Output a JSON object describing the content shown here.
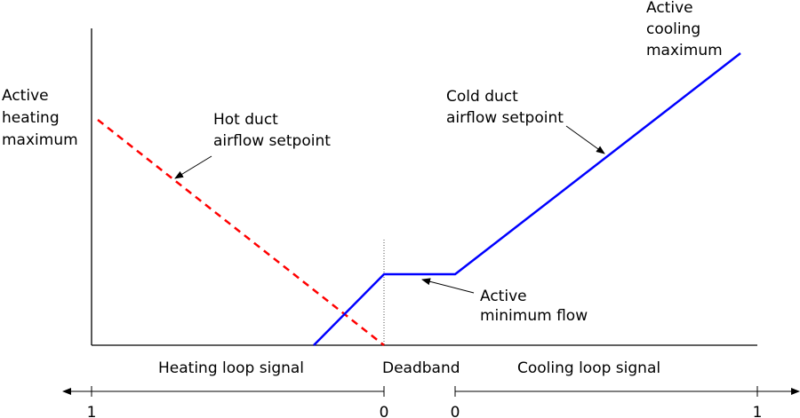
{
  "labels": {
    "heating_max": [
      "Active",
      "heating",
      "maximum"
    ],
    "hot_duct": [
      "Hot duct",
      "airflow setpoint"
    ],
    "cold_duct": [
      "Cold duct",
      "airflow setpoint"
    ],
    "cooling_max": [
      "Active",
      "cooling",
      "maximum"
    ],
    "min_flow": [
      "Active",
      "minimum flow"
    ],
    "heating_signal": "Heating loop signal",
    "deadband": "Deadband",
    "cooling_signal": "Cooling loop signal"
  },
  "scale": {
    "heating_start": "1",
    "heating_end": "0",
    "cooling_start": "0",
    "cooling_end": "1"
  }
}
